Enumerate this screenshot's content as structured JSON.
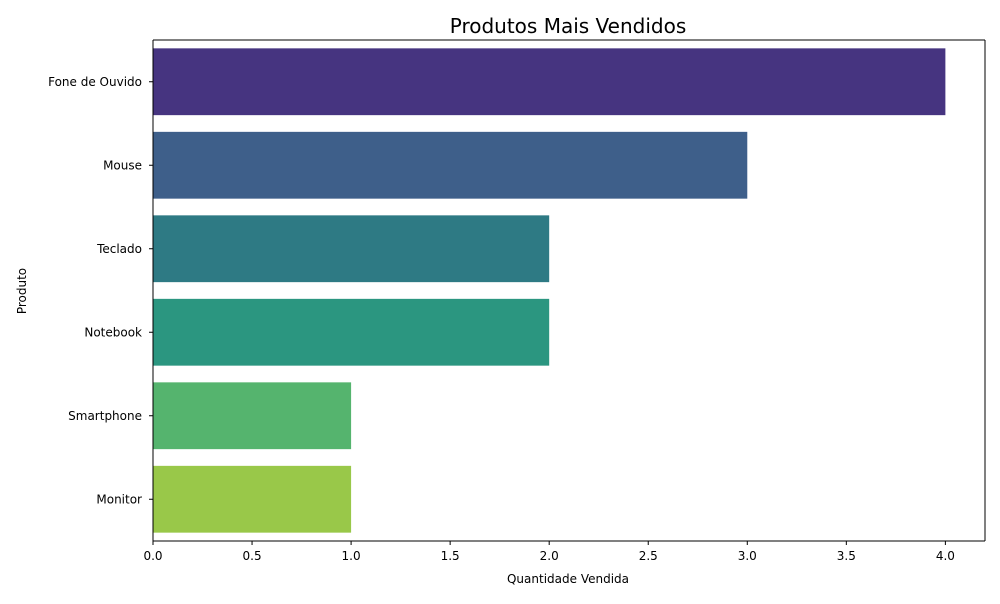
{
  "chart_data": {
    "type": "bar",
    "orientation": "horizontal",
    "title": "Produtos Mais Vendidos",
    "xlabel": "Quantidade Vendida",
    "ylabel": "Produto",
    "categories": [
      "Fone de Ouvido",
      "Mouse",
      "Teclado",
      "Notebook",
      "Smartphone",
      "Monitor"
    ],
    "values": [
      4,
      3,
      2,
      2,
      1,
      1
    ],
    "colors": [
      "#463480",
      "#3e5f8a",
      "#2e7a84",
      "#2b9680",
      "#55b46e",
      "#99c849"
    ],
    "xlim": [
      0,
      4.2
    ],
    "xticks": [
      "0.0",
      "0.5",
      "1.0",
      "1.5",
      "2.0",
      "2.5",
      "3.0",
      "3.5",
      "4.0"
    ],
    "grid": false,
    "legend": "none"
  }
}
